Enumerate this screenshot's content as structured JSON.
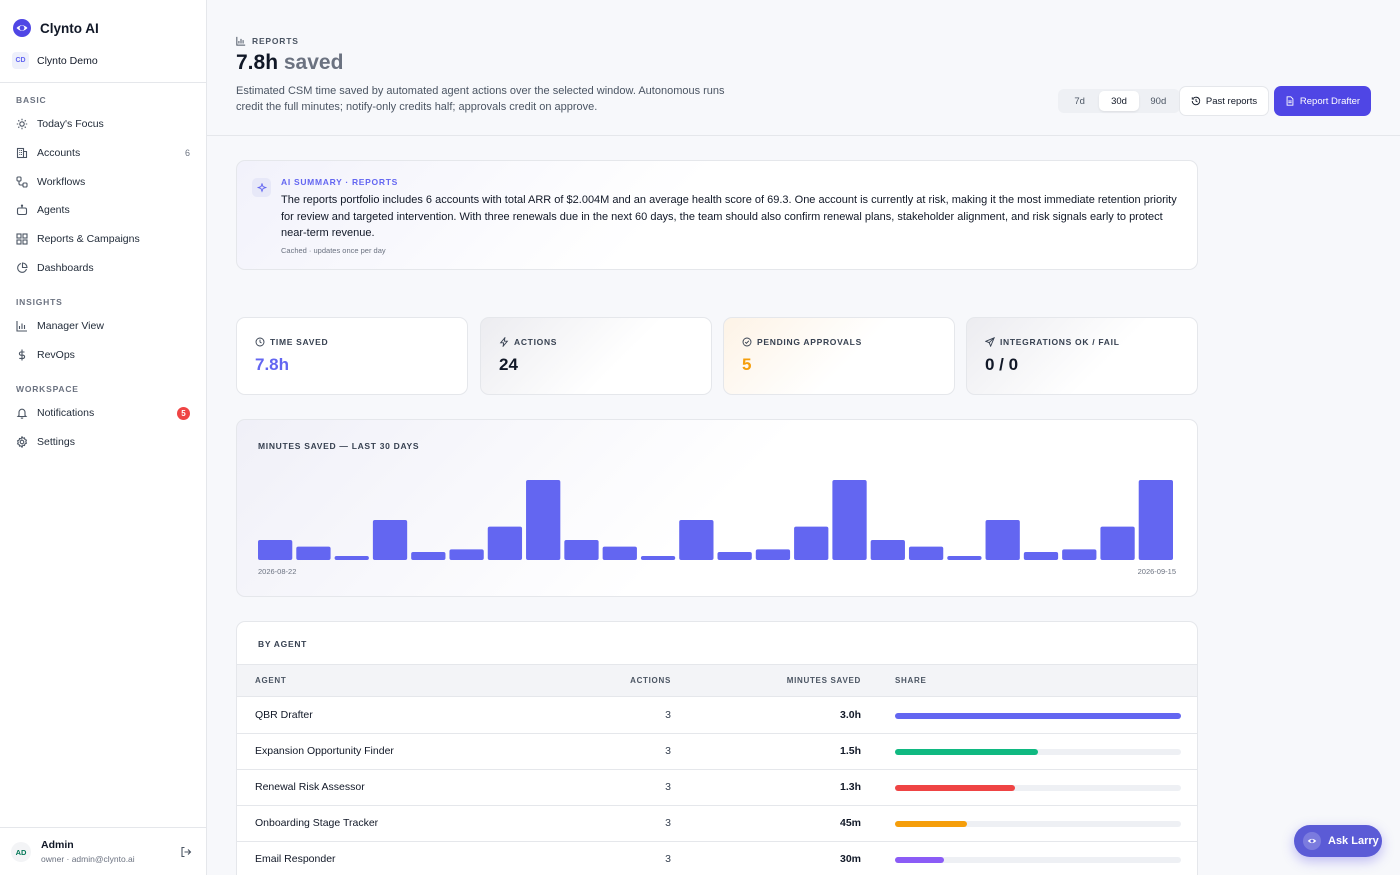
{
  "sidebar": {
    "brand": "Clynto AI",
    "workspace": {
      "initials": "CD",
      "name": "Clynto Demo"
    },
    "sections": [
      {
        "title": "BASIC",
        "items": [
          {
            "label": "Today's Focus",
            "icon": "sun-icon"
          },
          {
            "label": "Accounts",
            "icon": "building-icon",
            "count": "6"
          },
          {
            "label": "Workflows",
            "icon": "workflow-icon"
          },
          {
            "label": "Agents",
            "icon": "bot-icon"
          },
          {
            "label": "Reports & Campaigns",
            "icon": "grid-icon"
          },
          {
            "label": "Dashboards",
            "icon": "pie-chart-icon"
          }
        ]
      },
      {
        "title": "INSIGHTS",
        "items": [
          {
            "label": "Manager View",
            "icon": "bar-chart-icon"
          },
          {
            "label": "RevOps",
            "icon": "dollar-icon"
          }
        ]
      },
      {
        "title": "WORKSPACE",
        "items": [
          {
            "label": "Notifications",
            "icon": "bell-icon",
            "badge": "5"
          },
          {
            "label": "Settings",
            "icon": "gear-icon"
          }
        ]
      }
    ],
    "user": {
      "initials": "AD",
      "name": "Admin",
      "meta": "owner · admin@clynto.ai"
    }
  },
  "header": {
    "crumb": "REPORTS",
    "headline_value": "7.8h",
    "headline_word": "saved",
    "subtitle": "Estimated CSM time saved by automated agent actions over the selected window. Autonomous runs credit the full minutes; notify-only credits half; approvals credit on approve.",
    "ranges": [
      "7d",
      "30d",
      "90d"
    ],
    "active_range": "30d",
    "past_reports_label": "Past reports",
    "report_drafter_label": "Report Drafter"
  },
  "summary": {
    "label": "AI SUMMARY · REPORTS",
    "text": "The reports portfolio includes 6 accounts with total ARR of $2.004M and an average health score of 69.3. One account is currently at risk, making it the most immediate retention priority for review and targeted intervention. With three renewals due in the next 60 days, the team should also confirm renewal plans, stakeholder alignment, and risk signals early to protect near-term revenue.",
    "note": "Cached · updates once per day"
  },
  "kpis": [
    {
      "label": "TIME SAVED",
      "value": "7.8h",
      "icon": "clock-icon",
      "color": "#6366f1"
    },
    {
      "label": "ACTIONS",
      "value": "24",
      "icon": "zap-icon",
      "color": "#111827"
    },
    {
      "label": "PENDING APPROVALS",
      "value": "5",
      "icon": "check-circle-icon",
      "color": "#f59e0b"
    },
    {
      "label": "INTEGRATIONS OK / FAIL",
      "value": "0 / 0",
      "icon": "send-icon",
      "color": "#111827"
    }
  ],
  "chart_data": {
    "type": "bar",
    "title": "MINUTES SAVED — LAST 30 DAYS",
    "x_start_label": "2026-08-22",
    "x_end_label": "2026-09-15",
    "values": [
      15,
      10,
      3,
      30,
      6,
      8,
      25,
      60,
      15,
      10,
      3,
      30,
      6,
      8,
      25,
      60,
      15,
      10,
      3,
      30,
      6,
      8,
      25,
      60
    ],
    "ylim": [
      0,
      60
    ],
    "color": "#6366f1"
  },
  "by_agent": {
    "title": "BY AGENT",
    "columns": [
      "AGENT",
      "ACTIONS",
      "MINUTES SAVED",
      "SHARE"
    ],
    "rows": [
      {
        "agent": "QBR Drafter",
        "actions": "3",
        "minutes": "3.0h",
        "share": 1.0,
        "color": "#6366f1"
      },
      {
        "agent": "Expansion Opportunity Finder",
        "actions": "3",
        "minutes": "1.5h",
        "share": 0.5,
        "color": "#10b981"
      },
      {
        "agent": "Renewal Risk Assessor",
        "actions": "3",
        "minutes": "1.3h",
        "share": 0.42,
        "color": "#ef4444"
      },
      {
        "agent": "Onboarding Stage Tracker",
        "actions": "3",
        "minutes": "45m",
        "share": 0.25,
        "color": "#f59e0b"
      },
      {
        "agent": "Email Responder",
        "actions": "3",
        "minutes": "30m",
        "share": 0.17,
        "color": "#8b5cf6"
      }
    ]
  },
  "ask_button": {
    "label": "Ask Larry"
  }
}
